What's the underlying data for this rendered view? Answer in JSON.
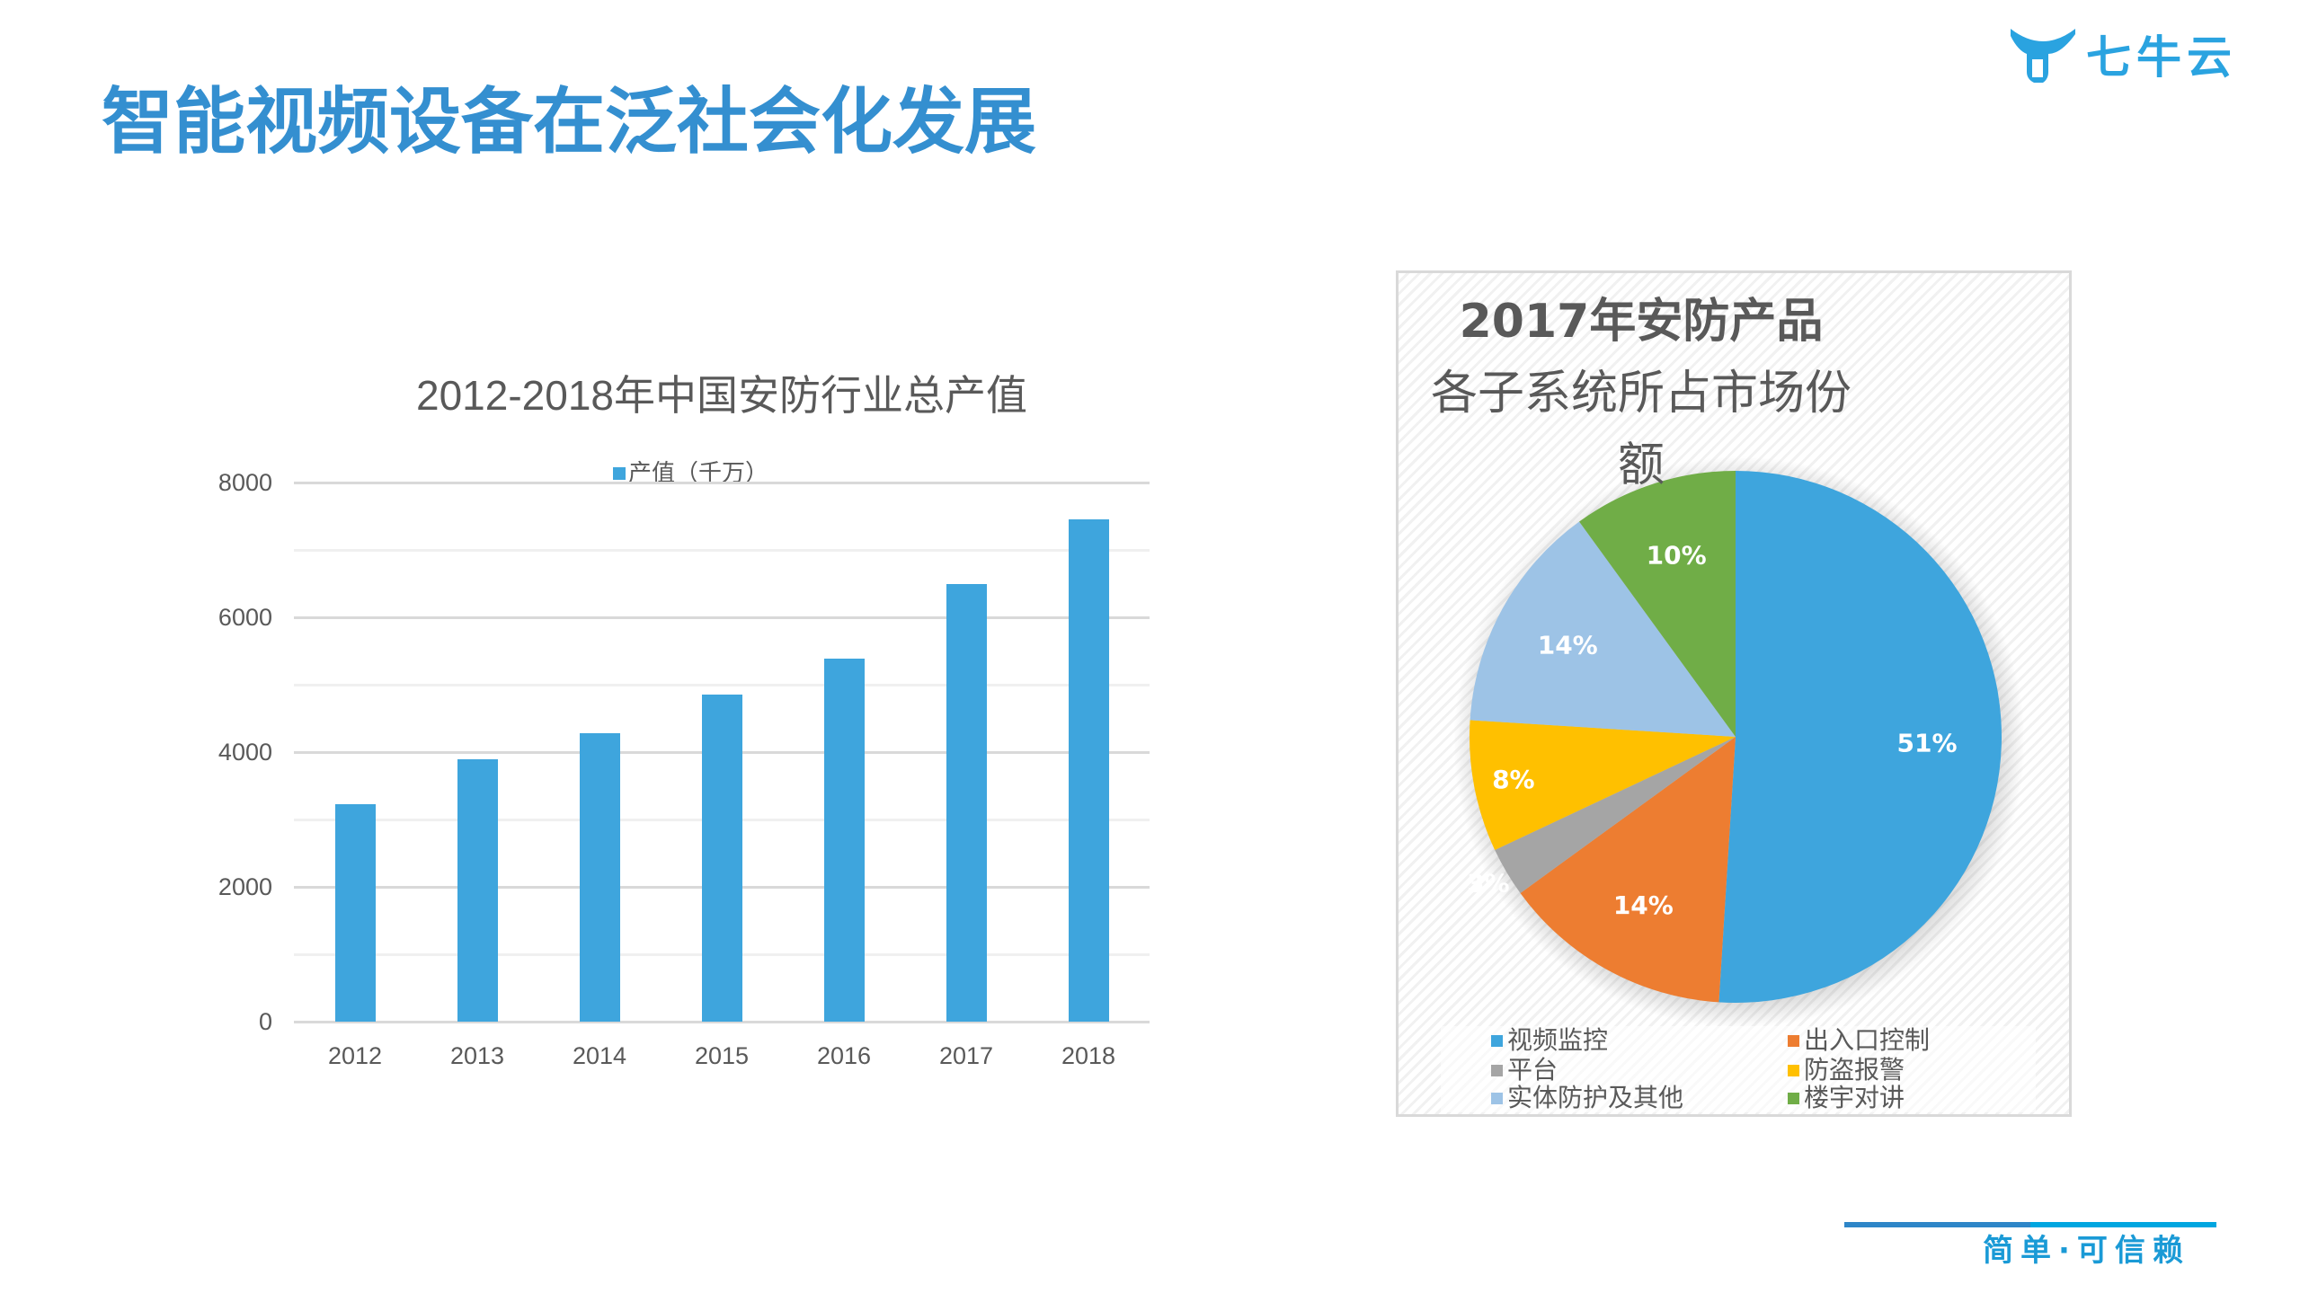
{
  "slide": {
    "title": "智能视频设备在泛社会化发展",
    "logo_text": "七牛云",
    "slogan": "简单·可信赖",
    "colors": {
      "title": "#348fd0",
      "bar": "#3ea5dd",
      "text": "#595959"
    }
  },
  "bar_chart": {
    "title": "2012-2018年中国安防行业总产值",
    "legend": "产值（千万）",
    "y_ticks": [
      "8000",
      "6000",
      "4000",
      "2000",
      "0"
    ],
    "x_ticks": [
      "2012",
      "2013",
      "2014",
      "2015",
      "2016",
      "2017",
      "2018"
    ]
  },
  "pie_chart": {
    "title_lines": [
      "2017年安防产品",
      "各子系统所占市场份",
      "额"
    ],
    "legend": [
      {
        "label": "视频监控",
        "color": "#3ea5dd"
      },
      {
        "label": "出入口控制",
        "color": "#ed7d31"
      },
      {
        "label": "平台",
        "color": "#a5a5a5"
      },
      {
        "label": "防盗报警",
        "color": "#ffc000"
      },
      {
        "label": "实体防护及其他",
        "color": "#9dc3e6"
      },
      {
        "label": "楼宇对讲",
        "color": "#70ad47"
      }
    ]
  },
  "chart_data": [
    {
      "type": "bar",
      "title": "2012-2018年中国安防行业总产值",
      "categories": [
        "2012",
        "2013",
        "2014",
        "2015",
        "2016",
        "2017",
        "2018"
      ],
      "series": [
        {
          "name": "产值（千万）",
          "values": [
            3230,
            3900,
            4280,
            4850,
            5390,
            6490,
            7450
          ],
          "color": "#3ea5dd"
        }
      ],
      "xlabel": "",
      "ylabel": "",
      "ylim": [
        0,
        8000
      ],
      "y_ticks": [
        0,
        2000,
        4000,
        6000,
        8000
      ],
      "grid": true,
      "legend_position": "top"
    },
    {
      "type": "pie",
      "title": "2017年安防产品各子系统所占市场份额",
      "categories": [
        "视频监控",
        "出入口控制",
        "平台",
        "防盗报警",
        "实体防护及其他",
        "楼宇对讲"
      ],
      "values": [
        51,
        14,
        3,
        8,
        14,
        10
      ],
      "labels": [
        "51%",
        "14%",
        "3%",
        "8%",
        "14%",
        "10%"
      ],
      "colors": [
        "#3ea5dd",
        "#ed7d31",
        "#a5a5a5",
        "#ffc000",
        "#9dc3e6",
        "#70ad47"
      ],
      "legend_position": "bottom"
    }
  ]
}
